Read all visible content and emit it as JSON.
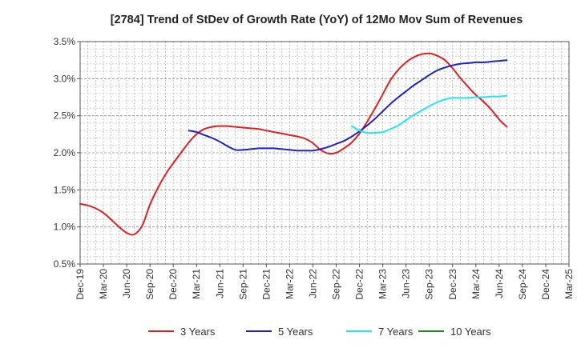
{
  "chart_data": {
    "type": "line",
    "title": "[2784]  Trend of StDev of Growth Rate (YoY) of 12Mo Mov Sum of Revenues",
    "xlabel": "",
    "ylabel": "",
    "ylim": [
      0.5,
      3.5
    ],
    "y_ticks": [
      0.5,
      1.0,
      1.5,
      2.0,
      2.5,
      3.0,
      3.5
    ],
    "y_tick_labels": [
      "0.5%",
      "1.0%",
      "1.5%",
      "2.0%",
      "2.5%",
      "3.0%",
      "3.5%"
    ],
    "x_tick_labels": [
      "Dec-19",
      "Mar-20",
      "Jun-20",
      "Sep-20",
      "Dec-20",
      "Mar-21",
      "Jun-21",
      "Sep-21",
      "Dec-21",
      "Mar-22",
      "Jun-22",
      "Sep-22",
      "Dec-22",
      "Mar-23",
      "Jun-23",
      "Sep-23",
      "Dec-23",
      "Mar-24",
      "Jun-24",
      "Sep-24",
      "Dec-24",
      "Mar-25"
    ],
    "grid": true,
    "legend_position": "bottom",
    "series": [
      {
        "name": "3 Years",
        "color": "#e02020",
        "points": [
          [
            0,
            1.31
          ],
          [
            0.33,
            1.29
          ],
          [
            0.67,
            1.25
          ],
          [
            1,
            1.19
          ],
          [
            1.33,
            1.1
          ],
          [
            1.67,
            1.0
          ],
          [
            2,
            0.92
          ],
          [
            2.33,
            0.9
          ],
          [
            2.67,
            1.02
          ],
          [
            3,
            1.3
          ],
          [
            3.33,
            1.52
          ],
          [
            3.67,
            1.71
          ],
          [
            4,
            1.86
          ],
          [
            4.33,
            2.0
          ],
          [
            4.67,
            2.14
          ],
          [
            5,
            2.25
          ],
          [
            5.33,
            2.32
          ],
          [
            5.67,
            2.35
          ],
          [
            6,
            2.36
          ],
          [
            6.33,
            2.36
          ],
          [
            6.67,
            2.35
          ],
          [
            7,
            2.34
          ],
          [
            7.33,
            2.33
          ],
          [
            7.67,
            2.32
          ],
          [
            8,
            2.3
          ],
          [
            8.33,
            2.28
          ],
          [
            8.67,
            2.26
          ],
          [
            9,
            2.24
          ],
          [
            9.33,
            2.22
          ],
          [
            9.67,
            2.19
          ],
          [
            10,
            2.13
          ],
          [
            10.33,
            2.04
          ],
          [
            10.67,
            1.99
          ],
          [
            11,
            2.0
          ],
          [
            11.33,
            2.06
          ],
          [
            11.67,
            2.14
          ],
          [
            12,
            2.26
          ],
          [
            12.33,
            2.42
          ],
          [
            12.67,
            2.6
          ],
          [
            13,
            2.79
          ],
          [
            13.33,
            2.98
          ],
          [
            13.67,
            3.12
          ],
          [
            14,
            3.22
          ],
          [
            14.33,
            3.29
          ],
          [
            14.67,
            3.33
          ],
          [
            15,
            3.34
          ],
          [
            15.33,
            3.31
          ],
          [
            15.67,
            3.25
          ],
          [
            16,
            3.14
          ],
          [
            16.33,
            3.01
          ],
          [
            16.67,
            2.89
          ],
          [
            17,
            2.78
          ],
          [
            17.33,
            2.69
          ],
          [
            17.67,
            2.58
          ],
          [
            18,
            2.45
          ],
          [
            18.33,
            2.35
          ]
        ]
      },
      {
        "name": "5 Years",
        "color": "#1f22c8",
        "points": [
          [
            4.67,
            2.3
          ],
          [
            5,
            2.28
          ],
          [
            5.33,
            2.24
          ],
          [
            5.67,
            2.2
          ],
          [
            6,
            2.15
          ],
          [
            6.33,
            2.09
          ],
          [
            6.67,
            2.04
          ],
          [
            7,
            2.04
          ],
          [
            7.33,
            2.05
          ],
          [
            7.67,
            2.06
          ],
          [
            8,
            2.06
          ],
          [
            8.33,
            2.06
          ],
          [
            8.67,
            2.05
          ],
          [
            9,
            2.04
          ],
          [
            9.33,
            2.03
          ],
          [
            9.67,
            2.03
          ],
          [
            10,
            2.03
          ],
          [
            10.33,
            2.05
          ],
          [
            10.67,
            2.08
          ],
          [
            11,
            2.12
          ],
          [
            11.33,
            2.16
          ],
          [
            11.67,
            2.22
          ],
          [
            12,
            2.29
          ],
          [
            12.33,
            2.37
          ],
          [
            12.67,
            2.46
          ],
          [
            13,
            2.56
          ],
          [
            13.33,
            2.66
          ],
          [
            13.67,
            2.75
          ],
          [
            14,
            2.83
          ],
          [
            14.33,
            2.91
          ],
          [
            14.67,
            2.98
          ],
          [
            15,
            3.05
          ],
          [
            15.33,
            3.11
          ],
          [
            15.67,
            3.15
          ],
          [
            16,
            3.18
          ],
          [
            16.33,
            3.2
          ],
          [
            16.67,
            3.21
          ],
          [
            17,
            3.22
          ],
          [
            17.33,
            3.22
          ],
          [
            17.67,
            3.23
          ],
          [
            18,
            3.24
          ],
          [
            18.33,
            3.25
          ]
        ]
      },
      {
        "name": "7 Years",
        "color": "#22e6ee",
        "points": [
          [
            11.67,
            2.36
          ],
          [
            12,
            2.3
          ],
          [
            12.33,
            2.27
          ],
          [
            12.67,
            2.27
          ],
          [
            13,
            2.28
          ],
          [
            13.33,
            2.32
          ],
          [
            13.67,
            2.37
          ],
          [
            14,
            2.44
          ],
          [
            14.33,
            2.51
          ],
          [
            14.67,
            2.57
          ],
          [
            15,
            2.63
          ],
          [
            15.33,
            2.68
          ],
          [
            15.67,
            2.72
          ],
          [
            16,
            2.74
          ],
          [
            16.33,
            2.74
          ],
          [
            16.67,
            2.74
          ],
          [
            17,
            2.75
          ],
          [
            17.33,
            2.75
          ],
          [
            17.67,
            2.76
          ],
          [
            18,
            2.76
          ],
          [
            18.33,
            2.77
          ]
        ]
      },
      {
        "name": "10 Years",
        "color": "#1f8a1f",
        "points": []
      }
    ]
  }
}
